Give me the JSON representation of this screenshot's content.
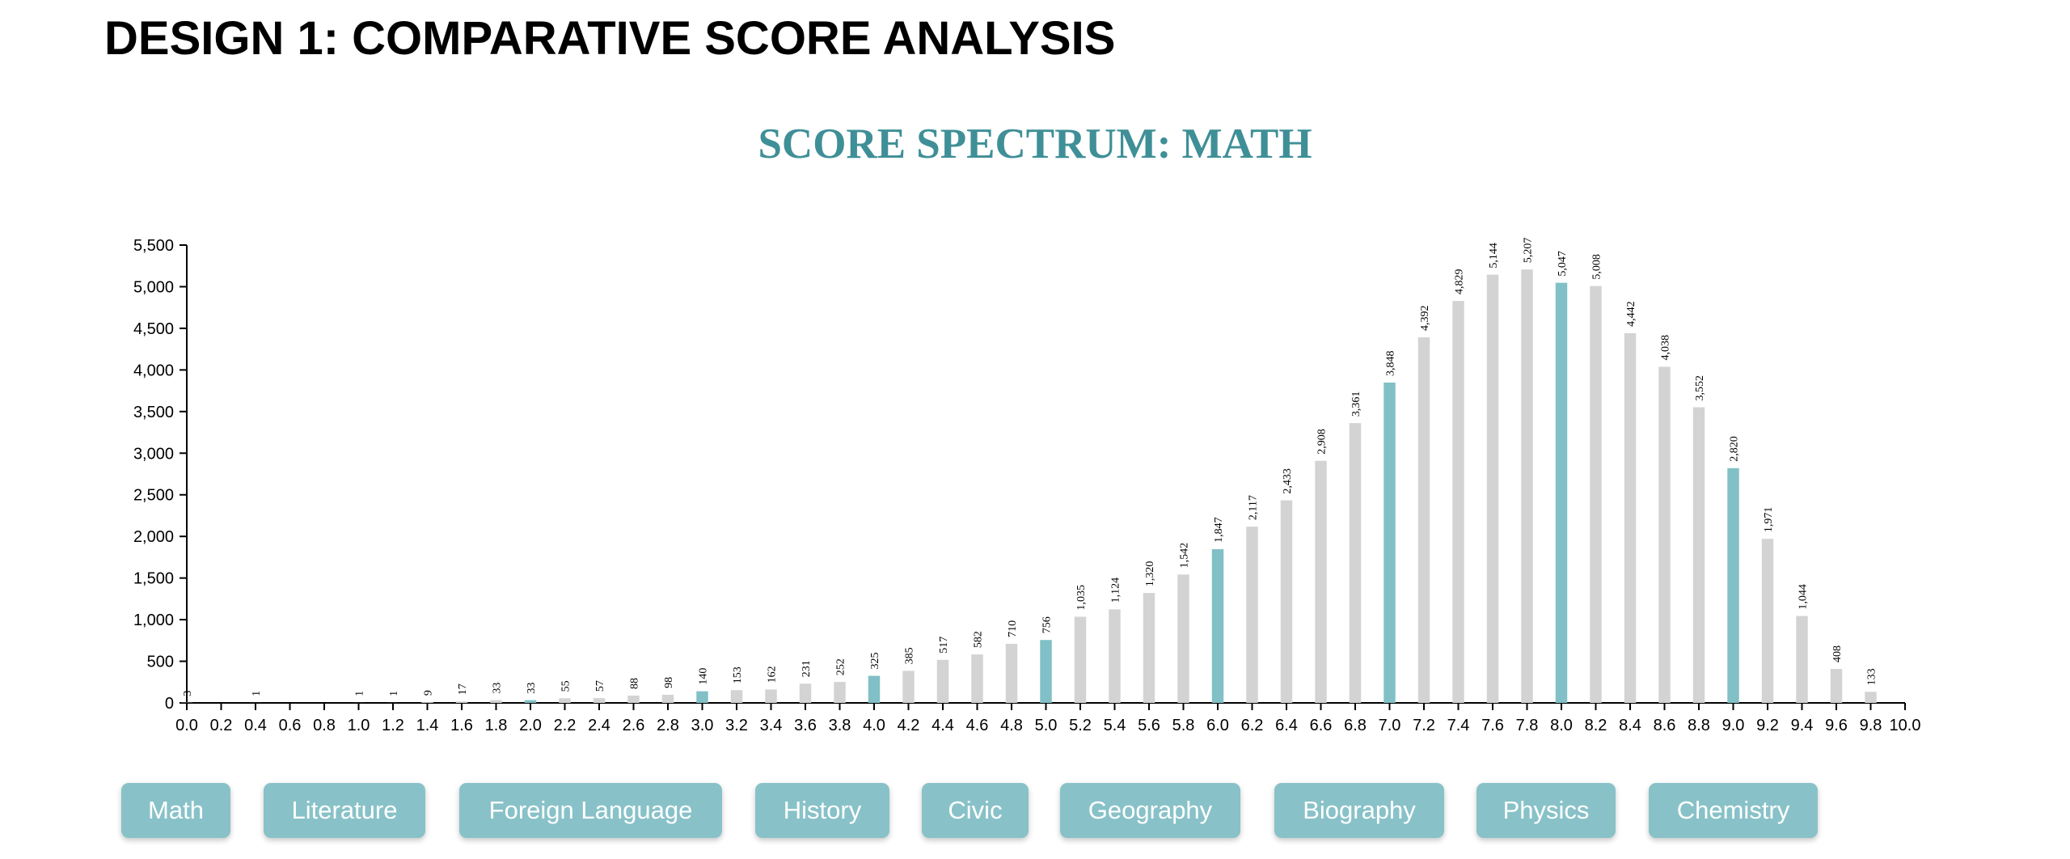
{
  "page_heading": "DESIGN 1: COMPARATIVE SCORE ANALYSIS",
  "colors": {
    "accent": "#3f8f97",
    "highlight_bar": "#80c0c6",
    "bar": "#d3d3d3",
    "button": "#88c2c8"
  },
  "subjects": [
    "Math",
    "Literature",
    "Foreign Language",
    "History",
    "Civic",
    "Geography",
    "Biography",
    "Physics",
    "Chemistry"
  ],
  "chart_data": {
    "type": "bar",
    "title": "SCORE SPECTRUM: MATH",
    "xlabel": "",
    "ylabel": "",
    "x": [
      0.0,
      0.2,
      0.4,
      0.6,
      0.8,
      1.0,
      1.2,
      1.4,
      1.6,
      1.8,
      2.0,
      2.2,
      2.4,
      2.6,
      2.8,
      3.0,
      3.2,
      3.4,
      3.6,
      3.8,
      4.0,
      4.2,
      4.4,
      4.6,
      4.8,
      5.0,
      5.2,
      5.4,
      5.6,
      5.8,
      6.0,
      6.2,
      6.4,
      6.6,
      6.8,
      7.0,
      7.2,
      7.4,
      7.6,
      7.8,
      8.0,
      8.2,
      8.4,
      8.6,
      8.8,
      9.0,
      9.2,
      9.4,
      9.6,
      9.8
    ],
    "values": [
      3,
      null,
      1,
      null,
      null,
      1,
      1,
      9,
      17,
      33,
      33,
      55,
      57,
      88,
      98,
      140,
      153,
      162,
      231,
      252,
      325,
      385,
      517,
      582,
      710,
      756,
      1035,
      1124,
      1320,
      1542,
      1847,
      2117,
      2433,
      2908,
      3361,
      3848,
      4392,
      4829,
      5144,
      5207,
      5047,
      5008,
      4442,
      4038,
      3552,
      2820,
      1971,
      1044,
      408,
      133
    ],
    "value_labels": [
      "3",
      "",
      "1",
      "",
      "",
      "1",
      "1",
      "9",
      "17",
      "33",
      "33",
      "55",
      "57",
      "88",
      "98",
      "140",
      "153",
      "162",
      "231",
      "252",
      "325",
      "385",
      "517",
      "582",
      "710",
      "756",
      "1,035",
      "1,124",
      "1,320",
      "1,542",
      "1,847",
      "2,117",
      "2,433",
      "2,908",
      "3,361",
      "3,848",
      "4,392",
      "4,829",
      "5,144",
      "5,207",
      "5,047",
      "5,008",
      "4,442",
      "4,038",
      "3,552",
      "2,820",
      "1,971",
      "1,044",
      "408",
      "133"
    ],
    "highlighted_x": [
      2.0,
      3.0,
      4.0,
      5.0,
      6.0,
      7.0,
      8.0,
      9.0
    ],
    "x_ticks": [
      "0.0",
      "0.2",
      "0.4",
      "0.6",
      "0.8",
      "1.0",
      "1.2",
      "1.4",
      "1.6",
      "1.8",
      "2.0",
      "2.2",
      "2.4",
      "2.6",
      "2.8",
      "3.0",
      "3.2",
      "3.4",
      "3.6",
      "3.8",
      "4.0",
      "4.2",
      "4.4",
      "4.6",
      "4.8",
      "5.0",
      "5.2",
      "5.4",
      "5.6",
      "5.8",
      "6.0",
      "6.2",
      "6.4",
      "6.6",
      "6.8",
      "7.0",
      "7.2",
      "7.4",
      "7.6",
      "7.8",
      "8.0",
      "8.2",
      "8.4",
      "8.6",
      "8.8",
      "9.0",
      "9.2",
      "9.4",
      "9.6",
      "9.8",
      "10.0"
    ],
    "y_ticks": [
      "0",
      "500",
      "1,000",
      "1,500",
      "2,000",
      "2,500",
      "3,000",
      "3,500",
      "4,000",
      "4,500",
      "5,000",
      "5,500"
    ],
    "xlim": [
      0,
      10
    ],
    "ylim": [
      0,
      5500
    ],
    "grid": false
  }
}
